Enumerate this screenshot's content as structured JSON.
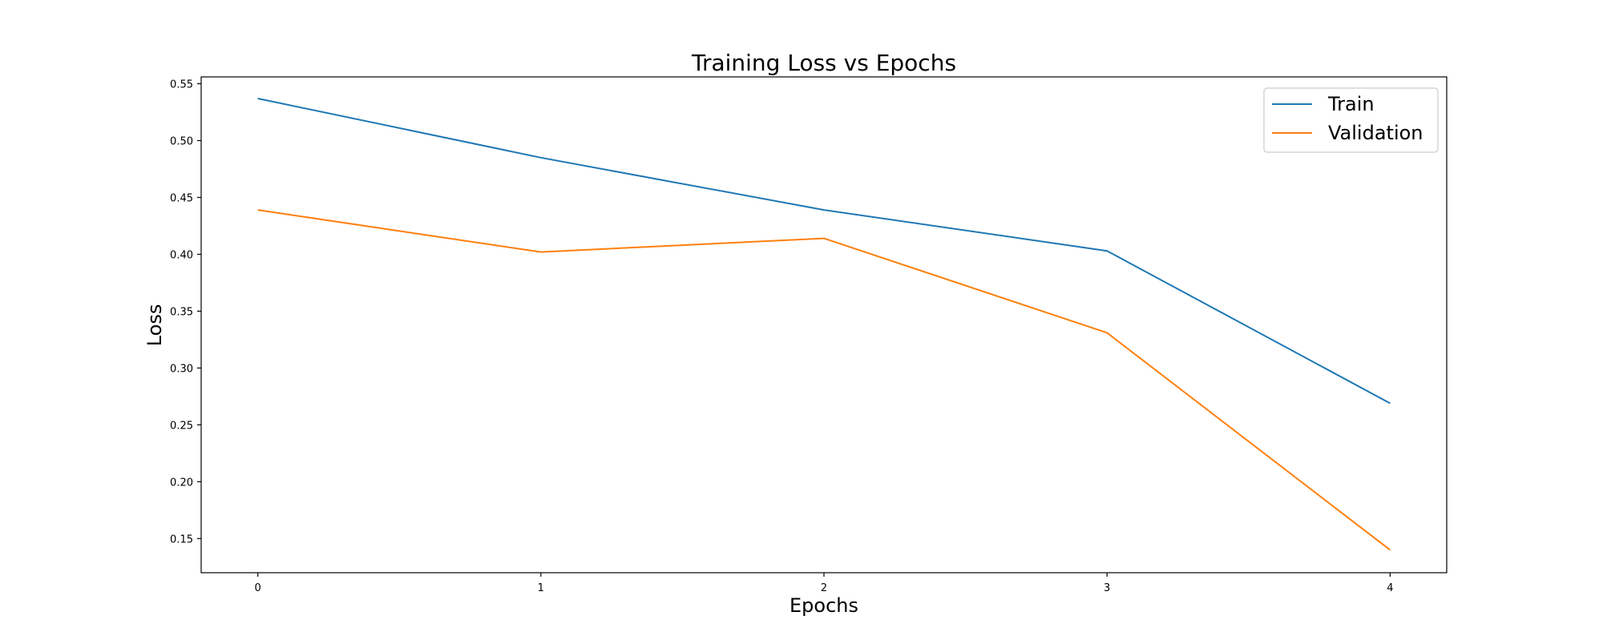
{
  "chart_data": {
    "type": "line",
    "title": "Training Loss vs Epochs",
    "xlabel": "Epochs",
    "ylabel": "Loss",
    "x": [
      0,
      1,
      2,
      3,
      4
    ],
    "xlim": [
      -0.2,
      4.2
    ],
    "ylim": [
      0.12,
      0.556
    ],
    "xticks": [
      0,
      1,
      2,
      3,
      4
    ],
    "xtick_labels": [
      "0",
      "1",
      "2",
      "3",
      "4"
    ],
    "yticks": [
      0.15,
      0.2,
      0.25,
      0.3,
      0.35,
      0.4,
      0.45,
      0.5,
      0.55
    ],
    "ytick_labels": [
      "0.15",
      "0.20",
      "0.25",
      "0.30",
      "0.35",
      "0.40",
      "0.45",
      "0.50",
      "0.55"
    ],
    "grid": false,
    "legend_position": "top-right",
    "series": [
      {
        "name": "Train",
        "color": "#1f77b4",
        "values": [
          0.537,
          0.485,
          0.439,
          0.403,
          0.269
        ]
      },
      {
        "name": "Validation",
        "color": "#ff7f0e",
        "values": [
          0.439,
          0.402,
          0.414,
          0.331,
          0.14
        ]
      }
    ]
  }
}
